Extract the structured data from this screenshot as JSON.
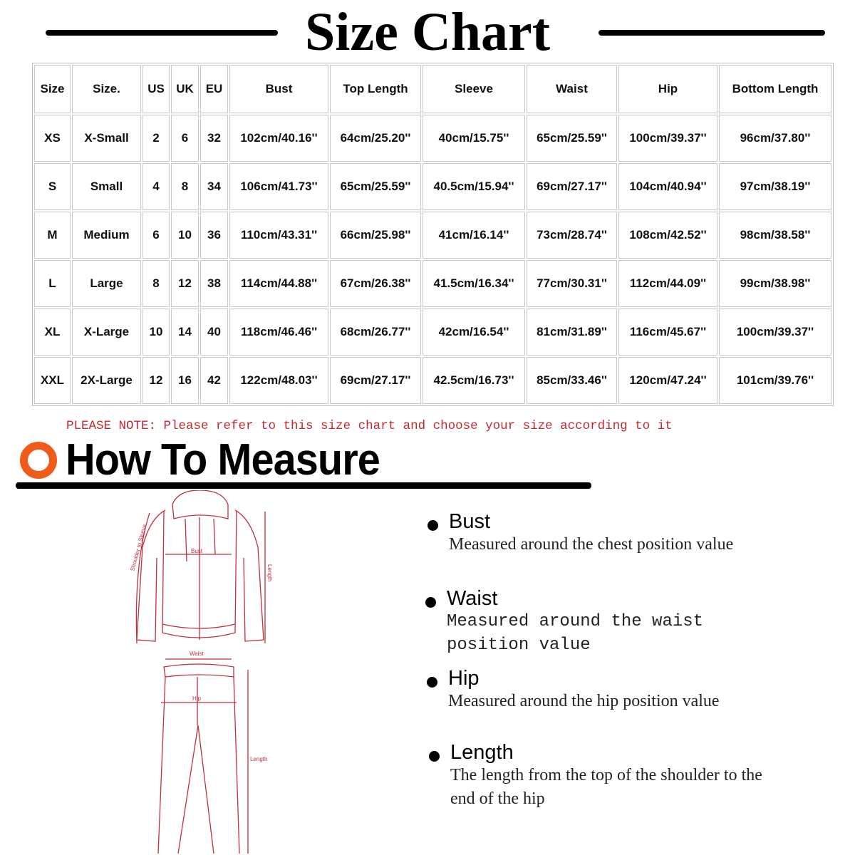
{
  "title": "Size Chart",
  "table": {
    "headers": [
      "Size",
      "Size.",
      "US",
      "UK",
      "EU",
      "Bust",
      "Top Length",
      "Sleeve",
      "Waist",
      "Hip",
      "Bottom Length"
    ],
    "rows": [
      [
        "XS",
        "X-Small",
        "2",
        "6",
        "32",
        "102cm/40.16''",
        "64cm/25.20''",
        "40cm/15.75''",
        "65cm/25.59''",
        "100cm/39.37''",
        "96cm/37.80''"
      ],
      [
        "S",
        "Small",
        "4",
        "8",
        "34",
        "106cm/41.73''",
        "65cm/25.59''",
        "40.5cm/15.94''",
        "69cm/27.17''",
        "104cm/40.94''",
        "97cm/38.19''"
      ],
      [
        "M",
        "Medium",
        "6",
        "10",
        "36",
        "110cm/43.31''",
        "66cm/25.98''",
        "41cm/16.14''",
        "73cm/28.74''",
        "108cm/42.52''",
        "98cm/38.58''"
      ],
      [
        "L",
        "Large",
        "8",
        "12",
        "38",
        "114cm/44.88''",
        "67cm/26.38''",
        "41.5cm/16.34''",
        "77cm/30.31''",
        "112cm/44.09''",
        "99cm/38.98''"
      ],
      [
        "XL",
        "X-Large",
        "10",
        "14",
        "40",
        "118cm/46.46''",
        "68cm/26.77''",
        "42cm/16.54''",
        "81cm/31.89''",
        "116cm/45.67''",
        "100cm/39.37''"
      ],
      [
        "XXL",
        "2X-Large",
        "12",
        "16",
        "42",
        "122cm/48.03''",
        "69cm/27.17''",
        "42.5cm/16.73''",
        "85cm/33.46''",
        "120cm/47.24''",
        "101cm/39.76''"
      ]
    ]
  },
  "note": "PLEASE NOTE: Please refer to this size chart and choose your size according to it",
  "how_to_measure": {
    "title": "How To Measure",
    "accent_color": "#f05a1a",
    "diagram_color": "#c0303a",
    "diagram_labels": {
      "shoulder_to_sleeve": "Shoulder to Sleeve",
      "bust": "Bust",
      "top_length": "Length",
      "waist": "Waist",
      "hip": "Hip",
      "bottom_length": "Length"
    },
    "items": [
      {
        "label": "Bust",
        "description": "Measured around the chest position value"
      },
      {
        "label": "Waist",
        "description": "Measured around the waist position value"
      },
      {
        "label": "Hip",
        "description": "Measured around the  hip position value"
      },
      {
        "label": "Length",
        "description": "The length from the top of the shoulder to the end of the hip"
      }
    ]
  }
}
